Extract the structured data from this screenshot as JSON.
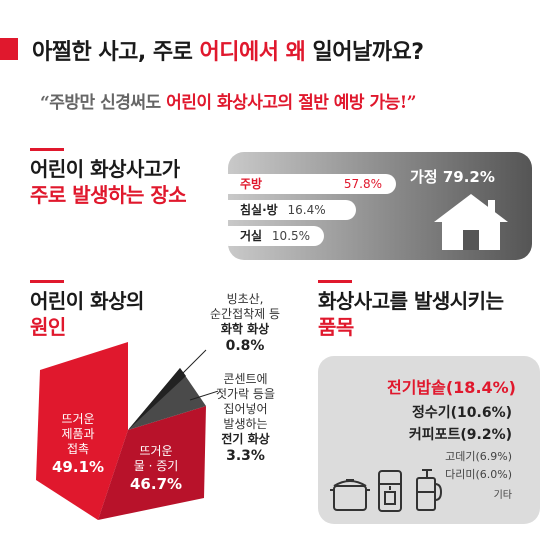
{
  "header": {
    "title_part1": "아찔한 사고, 주로 ",
    "title_part2": "어디에서 왜",
    "title_part3": " 일어날까요?",
    "quote_part1": "“주방만 신경써도 ",
    "quote_part2": "어린이 화상사고의 절반 예방 가능!”"
  },
  "places_section": {
    "heading_line1": "어린이 화상사고가",
    "heading_line2": "주로 발생하는 장소",
    "home_label": "가정 79.2%",
    "rows": [
      {
        "name": "주방",
        "value": "57.8%"
      },
      {
        "name": "침실·방",
        "value": "16.4%"
      },
      {
        "name": "거실",
        "value": "10.5%"
      }
    ]
  },
  "causes_section": {
    "heading_line1": "어린이 화상의",
    "heading_line2": "원인",
    "hot_food": {
      "line1": "뜨거운",
      "line2": "제품과",
      "line3": "접촉",
      "value": "49.1%"
    },
    "hot_water": {
      "line1": "뜨거운",
      "line2": "물 · 증기",
      "value": "46.7%"
    },
    "chemical": {
      "line1": "빙초산,",
      "line2": "순간접착제 등",
      "line3": "화학 화상",
      "value": "0.8%"
    },
    "electric": {
      "line1": "콘센트에",
      "line2": "젓가락 등을",
      "line3": "집어넣어",
      "line4": "발생하는",
      "line5": "전기 화상",
      "value": "3.3%"
    }
  },
  "items_section": {
    "heading_line1": "화상사고를 발생시키는",
    "heading_line2": "품목",
    "items": [
      "전기밥솥(18.4%)",
      "정수기(10.6%)",
      "커피포트(9.2%)",
      "고데기(6.9%)",
      "다리미(6.0%)",
      "기타"
    ]
  },
  "chart_data": {
    "type": "pie",
    "title": "어린이 화상의 원인",
    "categories": [
      "뜨거운 제품과 접촉",
      "뜨거운 물·증기",
      "화학 화상",
      "전기 화상"
    ],
    "values": [
      49.1,
      46.7,
      0.8,
      3.3
    ]
  },
  "colors": {
    "accent": "#e0182d",
    "dark_red": "#b8122a",
    "gray_panel": "#dcdcdc"
  }
}
